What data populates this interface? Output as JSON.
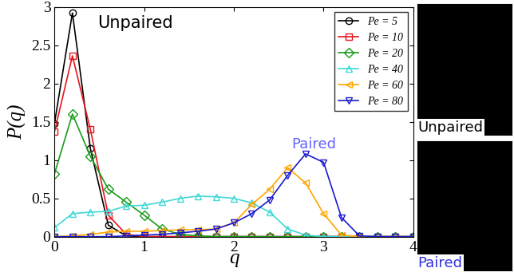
{
  "chart_data": {
    "type": "line",
    "x_label": "q",
    "y_label": "P(q)",
    "x": [
      0,
      0.2,
      0.4,
      0.6,
      0.8,
      1.0,
      1.2,
      1.4,
      1.6,
      1.8,
      2.0,
      2.2,
      2.4,
      2.6,
      2.8,
      3.0,
      3.2,
      3.4,
      3.6,
      3.8,
      4.0
    ],
    "xlim": [
      0,
      4
    ],
    "xticks": [
      0,
      1,
      2,
      3,
      4
    ],
    "ylim": [
      0,
      3
    ],
    "yticks": [
      0,
      0.5,
      1,
      1.5,
      2,
      2.5,
      3
    ],
    "legend": "upper right",
    "annotations": [
      "Unpaired",
      "Paired"
    ],
    "series": [
      {
        "name": "Pe = 5",
        "color": "#000000",
        "marker": "circle",
        "values": [
          1.48,
          2.92,
          1.15,
          0.15,
          0.01,
          0,
          0,
          0,
          0,
          0,
          0,
          0,
          0,
          0,
          0,
          0,
          0,
          0,
          0,
          0,
          0
        ]
      },
      {
        "name": "Pe = 10",
        "color": "#e8141e",
        "marker": "square",
        "values": [
          1.37,
          2.36,
          1.4,
          0.28,
          0.03,
          0,
          0,
          0,
          0,
          0,
          0,
          0,
          0,
          0,
          0,
          0,
          0,
          0,
          0,
          0,
          0
        ]
      },
      {
        "name": "Pe = 20",
        "color": "#1a9a1a",
        "marker": "diamond",
        "values": [
          0.82,
          1.6,
          1.05,
          0.62,
          0.45,
          0.28,
          0.1,
          0.03,
          0.01,
          0,
          0,
          0,
          0,
          0,
          0,
          0,
          0,
          0,
          0,
          0,
          0
        ]
      },
      {
        "name": "Pe = 40",
        "color": "#40d8d8",
        "marker": "triangle_up",
        "values": [
          0.12,
          0.3,
          0.32,
          0.33,
          0.4,
          0.41,
          0.45,
          0.5,
          0.53,
          0.52,
          0.5,
          0.44,
          0.32,
          0.1,
          0.02,
          0,
          0,
          0,
          0,
          0,
          0
        ]
      },
      {
        "name": "Pe = 60",
        "color": "#ffa500",
        "marker": "triangle_left",
        "values": [
          0,
          0.01,
          0.03,
          0.06,
          0.07,
          0.07,
          0.08,
          0.09,
          0.09,
          0.1,
          0.18,
          0.42,
          0.62,
          0.9,
          0.7,
          0.3,
          0.02,
          0,
          0,
          0,
          0
        ]
      },
      {
        "name": "Pe = 80",
        "color": "#1a1ad0",
        "marker": "triangle_down",
        "values": [
          0,
          0,
          0,
          0,
          0.01,
          0.02,
          0.03,
          0.05,
          0.07,
          0.1,
          0.18,
          0.3,
          0.48,
          0.8,
          1.08,
          0.97,
          0.25,
          0.01,
          0,
          0,
          0
        ]
      }
    ]
  },
  "panels": [
    "Unpaired",
    "Paired"
  ]
}
